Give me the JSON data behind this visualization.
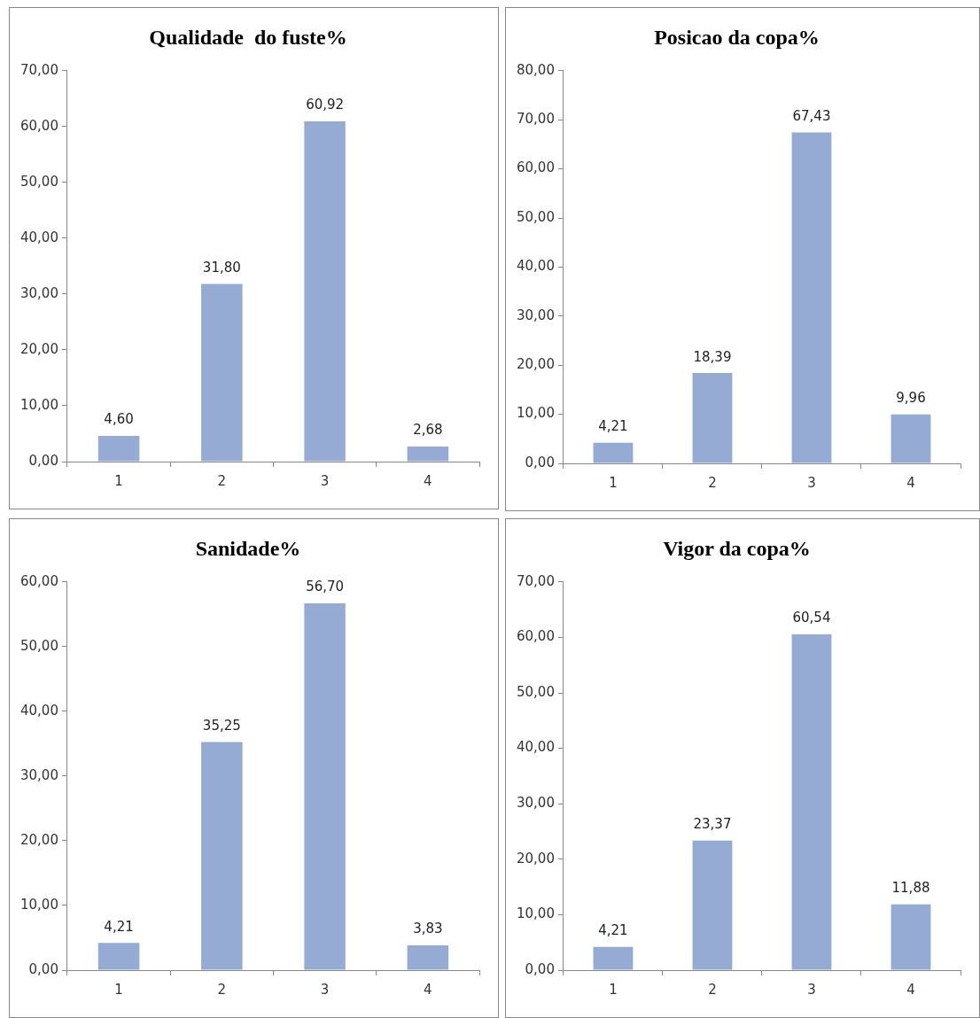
{
  "chart_data": [
    {
      "type": "bar",
      "title": "Qualidade  do fuste%",
      "categories": [
        "1",
        "2",
        "3",
        "4"
      ],
      "values": [
        4.6,
        31.8,
        60.92,
        2.68
      ],
      "value_labels": [
        "4,60",
        "31,80",
        "60,92",
        "2,68"
      ],
      "color": "#95abd3",
      "ylim": [
        0,
        70
      ],
      "yticks": [
        {
          "value": 0,
          "label": "0,00"
        },
        {
          "value": 10,
          "label": "10,00"
        },
        {
          "value": 20,
          "label": "20,00"
        },
        {
          "value": 30,
          "label": "30,00"
        },
        {
          "value": 40,
          "label": "40,00"
        },
        {
          "value": 50,
          "label": "50,00"
        },
        {
          "value": 60,
          "label": "60,00"
        },
        {
          "value": 70,
          "label": "70,00"
        }
      ],
      "grid": false,
      "legend": false
    },
    {
      "type": "bar",
      "title": "Posicao da copa%",
      "categories": [
        "1",
        "2",
        "3",
        "4"
      ],
      "values": [
        4.21,
        18.39,
        67.43,
        9.96
      ],
      "value_labels": [
        "4,21",
        "18,39",
        "67,43",
        "9,96"
      ],
      "color": "#95abd3",
      "ylim": [
        0,
        80
      ],
      "yticks": [
        {
          "value": 0,
          "label": "0,00"
        },
        {
          "value": 10,
          "label": "10,00"
        },
        {
          "value": 20,
          "label": "20,00"
        },
        {
          "value": 30,
          "label": "30,00"
        },
        {
          "value": 40,
          "label": "40,00"
        },
        {
          "value": 50,
          "label": "50,00"
        },
        {
          "value": 60,
          "label": "60,00"
        },
        {
          "value": 70,
          "label": "70,00"
        },
        {
          "value": 80,
          "label": "80,00"
        }
      ],
      "grid": false,
      "legend": false
    },
    {
      "type": "bar",
      "title": "Sanidade%",
      "categories": [
        "1",
        "2",
        "3",
        "4"
      ],
      "values": [
        4.21,
        35.25,
        56.7,
        3.83
      ],
      "value_labels": [
        "4,21",
        "35,25",
        "56,70",
        "3,83"
      ],
      "color": "#95abd3",
      "ylim": [
        0,
        60
      ],
      "yticks": [
        {
          "value": 0,
          "label": "0,00"
        },
        {
          "value": 10,
          "label": "10,00"
        },
        {
          "value": 20,
          "label": "20,00"
        },
        {
          "value": 30,
          "label": "30,00"
        },
        {
          "value": 40,
          "label": "40,00"
        },
        {
          "value": 50,
          "label": "50,00"
        },
        {
          "value": 60,
          "label": "60,00"
        }
      ],
      "grid": false,
      "legend": false
    },
    {
      "type": "bar",
      "title": "Vigor da copa%",
      "categories": [
        "1",
        "2",
        "3",
        "4"
      ],
      "values": [
        4.21,
        23.37,
        60.54,
        11.88
      ],
      "value_labels": [
        "4,21",
        "23,37",
        "60,54",
        "11,88"
      ],
      "color": "#95abd3",
      "ylim": [
        0,
        70
      ],
      "yticks": [
        {
          "value": 0,
          "label": "0,00"
        },
        {
          "value": 10,
          "label": "10,00"
        },
        {
          "value": 20,
          "label": "20,00"
        },
        {
          "value": 30,
          "label": "30,00"
        },
        {
          "value": 40,
          "label": "40,00"
        },
        {
          "value": 50,
          "label": "50,00"
        },
        {
          "value": 60,
          "label": "60,00"
        },
        {
          "value": 70,
          "label": "70,00"
        }
      ],
      "grid": false,
      "legend": false
    }
  ]
}
